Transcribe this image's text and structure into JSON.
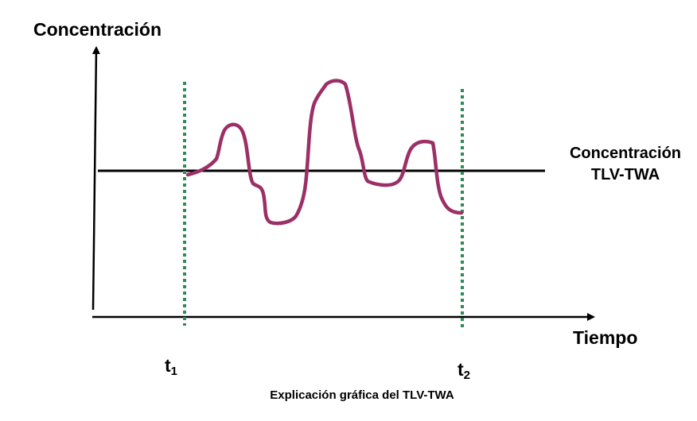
{
  "y_axis_label": "Concentración",
  "x_axis_label": "Tiempo",
  "reference_line_label": {
    "line1": "Concentración",
    "line2": "TLV-TWA"
  },
  "t1": {
    "base": "t",
    "sub": "1"
  },
  "t2": {
    "base": "t",
    "sub": "2"
  },
  "caption": "Explicación gráfica del TLV-TWA",
  "colors": {
    "axes": "#000000",
    "reference_line": "#000000",
    "concentration_curve": "#9b2f66",
    "time_markers": "#2e8b57"
  }
}
